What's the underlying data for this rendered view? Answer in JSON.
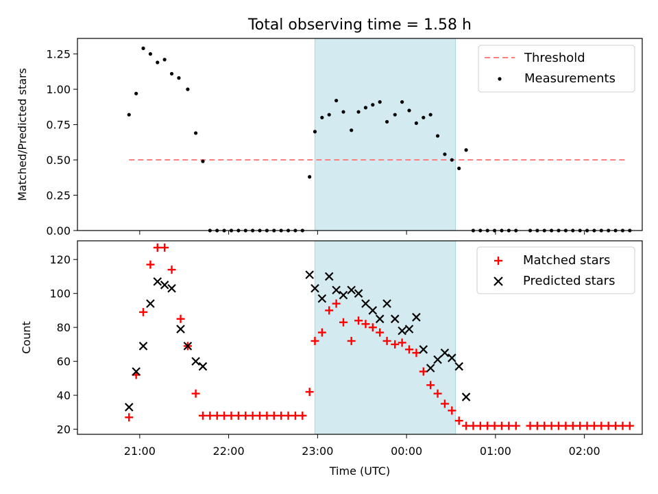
{
  "title": "Total observing time = 1.58 h",
  "xlabel": "Time (UTC)",
  "x_tick_labels": [
    "21:00",
    "22:00",
    "23:00",
    "00:00",
    "01:00",
    "02:00"
  ],
  "shaded_interval": {
    "start_hours_after_21h": 1.97,
    "end_hours_after_21h": 3.55,
    "color": "#d4eaf1"
  },
  "chart_data": [
    {
      "type": "scatter",
      "ylabel": "Matched/Predicted stars",
      "ylim": [
        0,
        1.36
      ],
      "yticks": [
        "0.00",
        "0.25",
        "0.50",
        "0.75",
        "1.00",
        "1.25"
      ],
      "legend_position": "top-right",
      "threshold": {
        "name": "Threshold",
        "value": 0.5,
        "x_range_hours": [
          -0.12,
          5.48
        ],
        "color": "#ff7f7f"
      },
      "series": [
        {
          "name": "Measurements",
          "color": "#000000",
          "x_hours_after_21h": [
            -0.12,
            -0.04,
            0.04,
            0.12,
            0.2,
            0.28,
            0.36,
            0.44,
            0.54,
            0.63,
            0.71,
            0.79,
            0.87,
            0.95,
            1.03,
            1.11,
            1.19,
            1.27,
            1.35,
            1.43,
            1.51,
            1.59,
            1.67,
            1.75,
            1.83,
            1.91,
            1.97,
            2.05,
            2.13,
            2.21,
            2.29,
            2.38,
            2.46,
            2.54,
            2.62,
            2.7,
            2.78,
            2.87,
            2.95,
            3.03,
            3.11,
            3.19,
            3.27,
            3.35,
            3.43,
            3.51,
            3.59,
            3.67,
            3.75,
            3.83,
            3.91,
            3.99,
            4.07,
            4.15,
            4.23,
            4.39,
            4.47,
            4.55,
            4.63,
            4.71,
            4.79,
            4.87,
            4.95,
            5.03,
            5.11,
            5.19,
            5.27,
            5.35,
            5.43,
            5.51
          ],
          "y": [
            0.82,
            0.97,
            1.29,
            1.25,
            1.19,
            1.21,
            1.11,
            1.08,
            1.0,
            0.69,
            0.49,
            0,
            0,
            0,
            0,
            0,
            0,
            0,
            0,
            0,
            0,
            0,
            0,
            0,
            0,
            0.38,
            0.7,
            0.8,
            0.82,
            0.92,
            0.84,
            0.71,
            0.84,
            0.87,
            0.89,
            0.91,
            0.77,
            0.82,
            0.91,
            0.85,
            0.76,
            0.8,
            0.82,
            0.67,
            0.54,
            0.5,
            0.44,
            0.57,
            0,
            0,
            0,
            0,
            0,
            0,
            0,
            0,
            0,
            0,
            0,
            0,
            0,
            0,
            0,
            0,
            0,
            0,
            0,
            0,
            0,
            0
          ]
        }
      ]
    },
    {
      "type": "scatter",
      "ylabel": "Count",
      "ylim": [
        17,
        131
      ],
      "yticks": [
        "20",
        "40",
        "60",
        "80",
        "100",
        "120"
      ],
      "legend_position": "top-right",
      "series": [
        {
          "name": "Matched stars",
          "marker": "plus",
          "color": "#ff0000",
          "x_hours_after_21h": [
            -0.12,
            -0.04,
            0.04,
            0.12,
            0.2,
            0.28,
            0.36,
            0.46,
            0.54,
            0.63,
            0.71,
            0.79,
            0.87,
            0.95,
            1.03,
            1.11,
            1.19,
            1.27,
            1.35,
            1.43,
            1.51,
            1.59,
            1.67,
            1.75,
            1.83,
            1.91,
            1.97,
            2.05,
            2.13,
            2.21,
            2.29,
            2.38,
            2.46,
            2.54,
            2.62,
            2.7,
            2.78,
            2.87,
            2.95,
            3.03,
            3.11,
            3.19,
            3.27,
            3.35,
            3.43,
            3.51,
            3.59,
            3.67,
            3.75,
            3.83,
            3.91,
            3.99,
            4.07,
            4.15,
            4.23,
            4.39,
            4.47,
            4.55,
            4.63,
            4.71,
            4.79,
            4.87,
            4.95,
            5.03,
            5.11,
            5.19,
            5.27,
            5.35,
            5.43,
            5.51
          ],
          "y": [
            27,
            52,
            89,
            117,
            127,
            127,
            114,
            85,
            69,
            41,
            28,
            28,
            28,
            28,
            28,
            28,
            28,
            28,
            28,
            28,
            28,
            28,
            28,
            28,
            28,
            42,
            72,
            77,
            90,
            94,
            83,
            72,
            84,
            82,
            80,
            77,
            72,
            70,
            71,
            67,
            65,
            54,
            46,
            41,
            35,
            31,
            25,
            22,
            22,
            22,
            22,
            22,
            22,
            22,
            22,
            22,
            22,
            22,
            22,
            22,
            22,
            22,
            22,
            22,
            22,
            22,
            22,
            22,
            22,
            22
          ]
        },
        {
          "name": "Predicted stars",
          "marker": "x",
          "color": "#000000",
          "x_hours_after_21h": [
            -0.12,
            -0.04,
            0.04,
            0.12,
            0.2,
            0.28,
            0.36,
            0.46,
            0.54,
            0.63,
            0.71,
            1.91,
            1.97,
            2.05,
            2.13,
            2.21,
            2.29,
            2.38,
            2.46,
            2.54,
            2.62,
            2.7,
            2.78,
            2.87,
            2.95,
            3.03,
            3.11,
            3.19,
            3.27,
            3.35,
            3.43,
            3.51,
            3.59,
            3.67
          ],
          "y": [
            33,
            54,
            69,
            94,
            107,
            105,
            103,
            79,
            69,
            60,
            57,
            111,
            103,
            97,
            110,
            102,
            99,
            102,
            100,
            94,
            90,
            85,
            94,
            85,
            78,
            79,
            86,
            67,
            56,
            61,
            65,
            62,
            57,
            39
          ]
        }
      ]
    }
  ]
}
